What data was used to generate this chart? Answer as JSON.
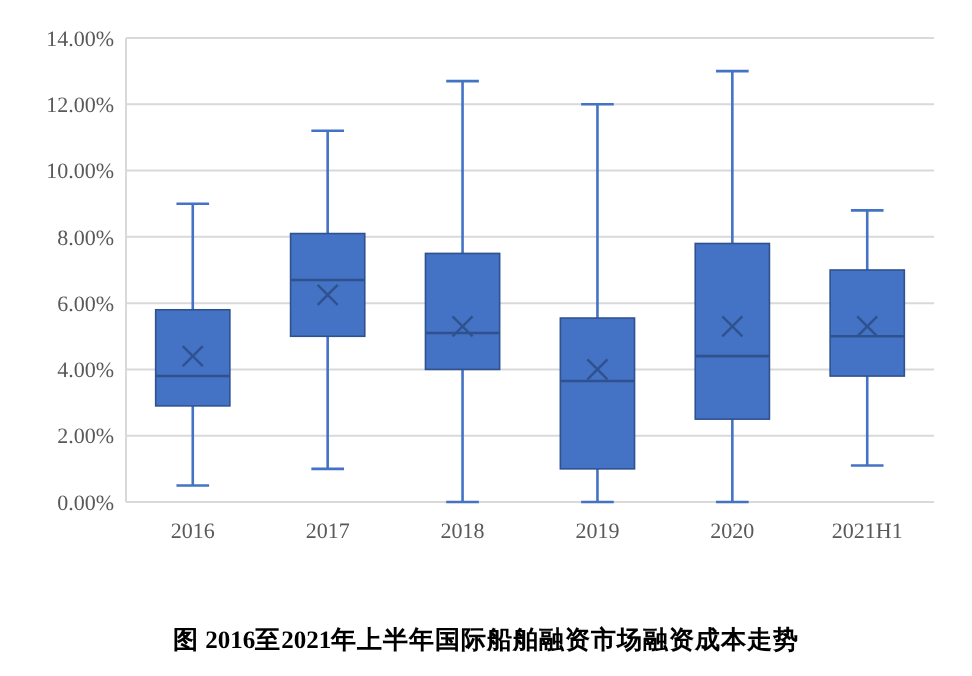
{
  "chart_data": {
    "type": "box",
    "title": "图  2016至2021年上半年国际船舶融资市场融资成本走势",
    "categories": [
      "2016",
      "2017",
      "2018",
      "2019",
      "2020",
      "2021H1"
    ],
    "color": "#4472c4",
    "grid": "y",
    "marker": "cross",
    "ylim": [
      0,
      14
    ],
    "yticks": [
      {
        "value": 0,
        "label": "0.00%"
      },
      {
        "value": 2,
        "label": "2.00%"
      },
      {
        "value": 4,
        "label": "4.00%"
      },
      {
        "value": 6,
        "label": "6.00%"
      },
      {
        "value": 8,
        "label": "8.00%"
      },
      {
        "value": 10,
        "label": "10.00%"
      },
      {
        "value": 12,
        "label": "12.00%"
      },
      {
        "value": 14,
        "label": "14.00%"
      }
    ],
    "boxes": [
      {
        "low": 0.5,
        "q1": 2.9,
        "median": 3.8,
        "q3": 5.8,
        "high": 9.0,
        "mean": 4.4
      },
      {
        "low": 1.0,
        "q1": 5.0,
        "median": 6.7,
        "q3": 8.1,
        "high": 11.2,
        "mean": 6.25
      },
      {
        "low": 0,
        "q1": 4.0,
        "median": 5.1,
        "q3": 7.5,
        "high": 12.7,
        "mean": 5.3
      },
      {
        "low": 0,
        "q1": 1.0,
        "median": 3.65,
        "q3": 5.55,
        "high": 12.0,
        "mean": 4.0
      },
      {
        "low": 0,
        "q1": 2.5,
        "median": 4.4,
        "q3": 7.8,
        "high": 13.0,
        "mean": 5.3
      },
      {
        "low": 1.1,
        "q1": 3.8,
        "median": 5.0,
        "q3": 7.0,
        "high": 8.8,
        "mean": 5.3
      }
    ]
  }
}
